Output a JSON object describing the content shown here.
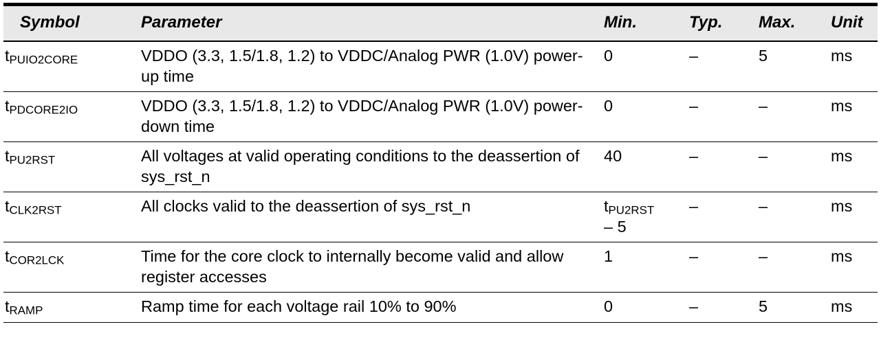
{
  "colors": {
    "header_bg": "#e8e8e8",
    "border": "#000000",
    "text": "#000000",
    "page_bg": "#ffffff"
  },
  "table": {
    "columns": [
      {
        "key": "symbol",
        "label": "Symbol"
      },
      {
        "key": "parameter",
        "label": "Parameter"
      },
      {
        "key": "min",
        "label": "Min."
      },
      {
        "key": "typ",
        "label": "Typ."
      },
      {
        "key": "max",
        "label": "Max."
      },
      {
        "key": "unit",
        "label": "Unit"
      }
    ],
    "rows": [
      {
        "symbol": {
          "base": "t",
          "sub": "PUIO2CORE"
        },
        "parameter": "VDDO (3.3, 1.5/1.8, 1.2) to VDDC/Analog PWR (1.0V) power-up time",
        "min": "0",
        "typ": "–",
        "max": "5",
        "unit": "ms"
      },
      {
        "symbol": {
          "base": "t",
          "sub": "PDCORE2IO"
        },
        "parameter": "VDDO (3.3, 1.5/1.8, 1.2) to VDDC/Analog PWR (1.0V) power-down time",
        "min": "0",
        "typ": "–",
        "max": "–",
        "unit": "ms"
      },
      {
        "symbol": {
          "base": "t",
          "sub": "PU2RST"
        },
        "parameter": "All voltages at valid operating conditions to the deassertion of sys_rst_n",
        "min": "40",
        "typ": "–",
        "max": "–",
        "unit": "ms"
      },
      {
        "symbol": {
          "base": "t",
          "sub": "CLK2RST"
        },
        "parameter": "All clocks valid to the deassertion of sys_rst_n",
        "min": {
          "base": "t",
          "sub": "PU2RST",
          "line2": "– 5"
        },
        "typ": "–",
        "max": "–",
        "unit": "ms"
      },
      {
        "symbol": {
          "base": "t",
          "sub": "COR2LCK"
        },
        "parameter": "Time for the core clock to internally become valid and allow register accesses",
        "min": "1",
        "typ": "–",
        "max": "–",
        "unit": "ms"
      },
      {
        "symbol": {
          "base": "t",
          "sub": "RAMP"
        },
        "parameter": "Ramp time for each voltage rail 10% to 90%",
        "min": "0",
        "typ": "–",
        "max": "5",
        "unit": "ms"
      }
    ]
  }
}
